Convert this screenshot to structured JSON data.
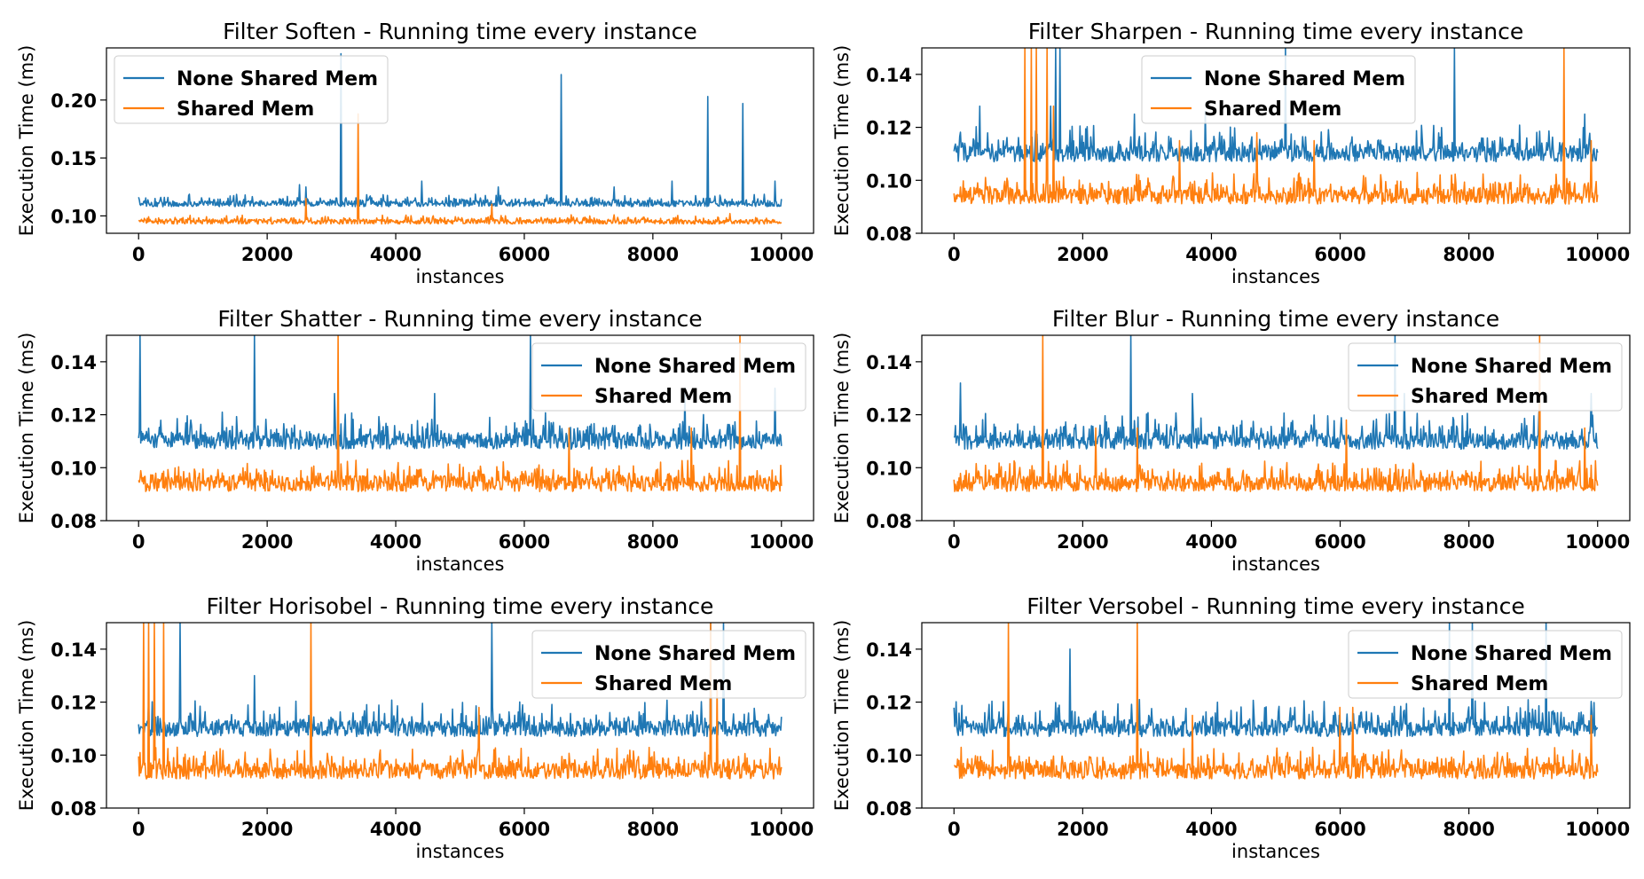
{
  "colors": {
    "series_a": "#1f77b4",
    "series_b": "#ff7f0e",
    "axis": "#000000",
    "legend_border": "#cccccc"
  },
  "chart_data": [
    {
      "type": "line",
      "title": "Filter Soften - Running time every instance",
      "xlabel": "instances",
      "ylabel": "Execution Time (ms)",
      "xlim": [
        -500,
        10500
      ],
      "ylim": [
        0.085,
        0.245
      ],
      "xticks": [
        0,
        2000,
        4000,
        6000,
        8000,
        10000
      ],
      "yticks": [
        0.1,
        0.15,
        0.2
      ],
      "ytick_labels": [
        "0.10",
        "0.15",
        "0.20"
      ],
      "legend": "upper left",
      "series": [
        {
          "name": "None Shared Mem",
          "baseline": [
            0.108,
            0.113
          ],
          "noise": 0.006,
          "spikes": [
            [
              2500,
              0.127
            ],
            [
              2600,
              0.125
            ],
            [
              3150,
              0.24
            ],
            [
              4400,
              0.13
            ],
            [
              5600,
              0.125
            ],
            [
              6570,
              0.222
            ],
            [
              7400,
              0.125
            ],
            [
              8300,
              0.13
            ],
            [
              8850,
              0.203
            ],
            [
              9400,
              0.197
            ],
            [
              9900,
              0.13
            ]
          ]
        },
        {
          "name": "Shared Mem",
          "baseline": [
            0.093,
            0.097
          ],
          "noise": 0.004,
          "spikes": [
            [
              2600,
              0.115
            ],
            [
              3420,
              0.188
            ],
            [
              5500,
              0.11
            ],
            [
              9200,
              0.102
            ]
          ]
        }
      ]
    },
    {
      "type": "line",
      "title": "Filter Sharpen - Running time every instance",
      "xlabel": "instances",
      "ylabel": "Execution Time (ms)",
      "xlim": [
        -500,
        10500
      ],
      "ylim": [
        0.08,
        0.15
      ],
      "xticks": [
        0,
        2000,
        4000,
        6000,
        8000,
        10000
      ],
      "yticks": [
        0.08,
        0.1,
        0.12,
        0.14
      ],
      "ytick_labels": [
        "0.08",
        "0.10",
        "0.12",
        "0.14"
      ],
      "legend": "upper center",
      "series": [
        {
          "name": "None Shared Mem",
          "baseline": [
            0.107,
            0.113
          ],
          "noise": 0.008,
          "spikes": [
            [
              400,
              0.128
            ],
            [
              1500,
              0.128
            ],
            [
              1580,
              0.15
            ],
            [
              1650,
              0.15
            ],
            [
              2800,
              0.125
            ],
            [
              3900,
              0.126
            ],
            [
              5150,
              0.15
            ],
            [
              7780,
              0.15
            ],
            [
              9800,
              0.125
            ]
          ]
        },
        {
          "name": "Shared Mem",
          "baseline": [
            0.091,
            0.097
          ],
          "noise": 0.006,
          "spikes": [
            [
              1100,
              0.15
            ],
            [
              1200,
              0.15
            ],
            [
              1280,
              0.15
            ],
            [
              1450,
              0.15
            ],
            [
              1550,
              0.128
            ],
            [
              3500,
              0.115
            ],
            [
              4700,
              0.118
            ],
            [
              5600,
              0.115
            ],
            [
              9480,
              0.15
            ],
            [
              9900,
              0.115
            ]
          ]
        }
      ]
    },
    {
      "type": "line",
      "title": "Filter Shatter - Running time every instance",
      "xlabel": "instances",
      "ylabel": "Execution Time (ms)",
      "xlim": [
        -500,
        10500
      ],
      "ylim": [
        0.08,
        0.15
      ],
      "xticks": [
        0,
        2000,
        4000,
        6000,
        8000,
        10000
      ],
      "yticks": [
        0.08,
        0.1,
        0.12,
        0.14
      ],
      "ytick_labels": [
        "0.08",
        "0.10",
        "0.12",
        "0.14"
      ],
      "legend": "upper right",
      "series": [
        {
          "name": "None Shared Mem",
          "baseline": [
            0.107,
            0.113
          ],
          "noise": 0.008,
          "spikes": [
            [
              20,
              0.15
            ],
            [
              1800,
              0.15
            ],
            [
              3050,
              0.128
            ],
            [
              4600,
              0.128
            ],
            [
              6100,
              0.15
            ],
            [
              8500,
              0.13
            ],
            [
              9900,
              0.13
            ]
          ]
        },
        {
          "name": "Shared Mem",
          "baseline": [
            0.091,
            0.097
          ],
          "noise": 0.006,
          "spikes": [
            [
              3100,
              0.15
            ],
            [
              6700,
              0.115
            ],
            [
              8600,
              0.115
            ],
            [
              9350,
              0.15
            ]
          ]
        }
      ]
    },
    {
      "type": "line",
      "title": "Filter Blur - Running time every instance",
      "xlabel": "instances",
      "ylabel": "Execution Time (ms)",
      "xlim": [
        -500,
        10500
      ],
      "ylim": [
        0.08,
        0.15
      ],
      "xticks": [
        0,
        2000,
        4000,
        6000,
        8000,
        10000
      ],
      "yticks": [
        0.08,
        0.1,
        0.12,
        0.14
      ],
      "ytick_labels": [
        "0.08",
        "0.10",
        "0.12",
        "0.14"
      ],
      "legend": "upper right",
      "series": [
        {
          "name": "None Shared Mem",
          "baseline": [
            0.107,
            0.113
          ],
          "noise": 0.008,
          "spikes": [
            [
              100,
              0.132
            ],
            [
              2750,
              0.15
            ],
            [
              3700,
              0.128
            ],
            [
              6850,
              0.15
            ],
            [
              7000,
              0.128
            ],
            [
              9900,
              0.128
            ]
          ]
        },
        {
          "name": "Shared Mem",
          "baseline": [
            0.091,
            0.097
          ],
          "noise": 0.006,
          "spikes": [
            [
              1380,
              0.15
            ],
            [
              2200,
              0.115
            ],
            [
              2850,
              0.115
            ],
            [
              6100,
              0.118
            ],
            [
              9100,
              0.15
            ],
            [
              9800,
              0.115
            ]
          ]
        }
      ]
    },
    {
      "type": "line",
      "title": "Filter Horisobel - Running time every instance",
      "xlabel": "instances",
      "ylabel": "Execution Time (ms)",
      "xlim": [
        -500,
        10500
      ],
      "ylim": [
        0.08,
        0.15
      ],
      "xticks": [
        0,
        2000,
        4000,
        6000,
        8000,
        10000
      ],
      "yticks": [
        0.08,
        0.1,
        0.12,
        0.14
      ],
      "ytick_labels": [
        "0.08",
        "0.10",
        "0.12",
        "0.14"
      ],
      "legend": "upper right",
      "series": [
        {
          "name": "None Shared Mem",
          "baseline": [
            0.107,
            0.113
          ],
          "noise": 0.008,
          "spikes": [
            [
              640,
              0.15
            ],
            [
              1800,
              0.13
            ],
            [
              5500,
              0.15
            ],
            [
              8900,
              0.15
            ],
            [
              9100,
              0.15
            ]
          ]
        },
        {
          "name": "Shared Mem",
          "baseline": [
            0.091,
            0.097
          ],
          "noise": 0.006,
          "spikes": [
            [
              80,
              0.15
            ],
            [
              160,
              0.15
            ],
            [
              250,
              0.15
            ],
            [
              390,
              0.15
            ],
            [
              2680,
              0.15
            ],
            [
              5300,
              0.118
            ],
            [
              8900,
              0.15
            ],
            [
              9000,
              0.128
            ]
          ]
        }
      ]
    },
    {
      "type": "line",
      "title": "Filter Versobel - Running time every instance",
      "xlabel": "instances",
      "ylabel": "Execution Time (ms)",
      "xlim": [
        -500,
        10500
      ],
      "ylim": [
        0.08,
        0.15
      ],
      "xticks": [
        0,
        2000,
        4000,
        6000,
        8000,
        10000
      ],
      "yticks": [
        0.08,
        0.1,
        0.12,
        0.14
      ],
      "ytick_labels": [
        "0.08",
        "0.10",
        "0.12",
        "0.14"
      ],
      "legend": "upper right",
      "series": [
        {
          "name": "None Shared Mem",
          "baseline": [
            0.107,
            0.113
          ],
          "noise": 0.008,
          "spikes": [
            [
              1800,
              0.14
            ],
            [
              7700,
              0.15
            ],
            [
              8050,
              0.15
            ],
            [
              9200,
              0.15
            ]
          ]
        },
        {
          "name": "Shared Mem",
          "baseline": [
            0.091,
            0.097
          ],
          "noise": 0.006,
          "spikes": [
            [
              850,
              0.15
            ],
            [
              2850,
              0.15
            ],
            [
              3700,
              0.115
            ],
            [
              6000,
              0.118
            ],
            [
              6200,
              0.118
            ],
            [
              9900,
              0.115
            ]
          ]
        }
      ]
    }
  ]
}
